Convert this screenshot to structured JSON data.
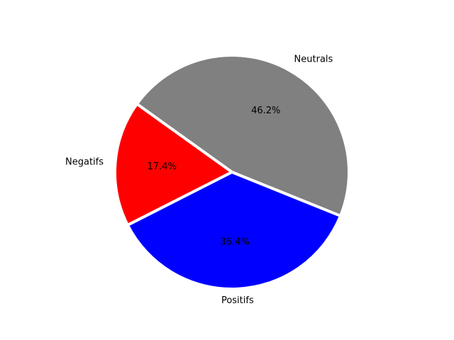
{
  "chart_data": {
    "type": "pie",
    "slices": [
      {
        "label": "Neutrals",
        "value": 46.2,
        "pct_label": "46.2%",
        "color": "#808080"
      },
      {
        "label": "Negatifs",
        "value": 17.4,
        "pct_label": "17.4%",
        "color": "#ff0000"
      },
      {
        "label": "Positifs",
        "value": 36.4,
        "pct_label": "36.4%",
        "color": "#0000ff"
      }
    ],
    "start_angle_deg": -22,
    "direction": "counterclockwise",
    "edge_color": "#ffffff",
    "title": ""
  }
}
